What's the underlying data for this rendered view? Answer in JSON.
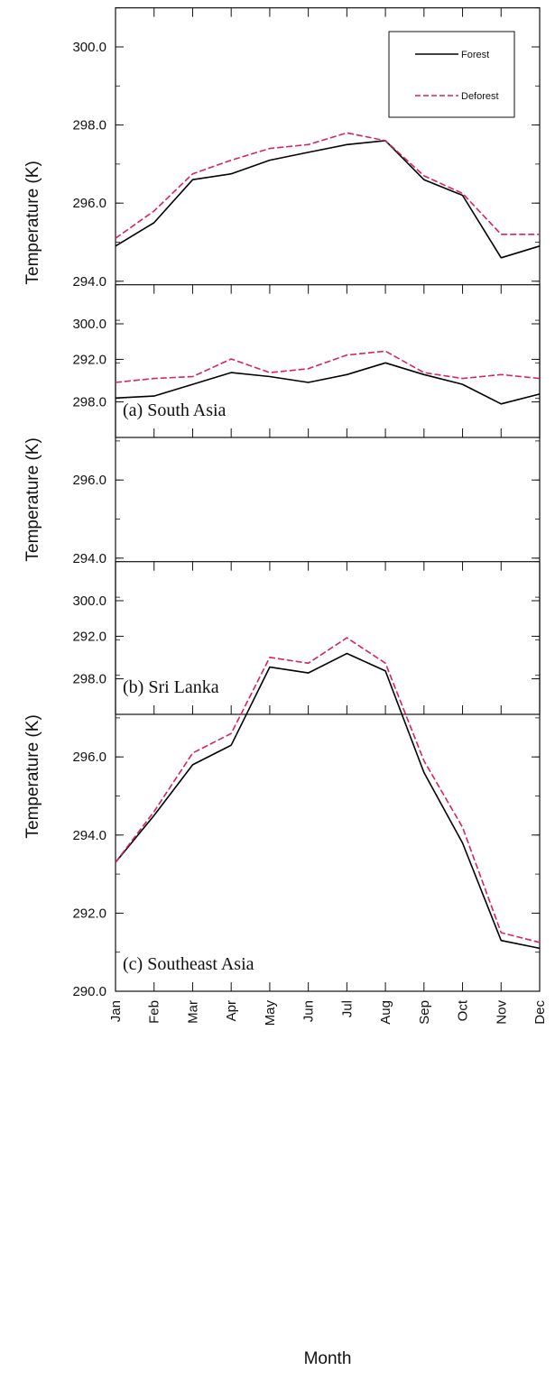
{
  "chart_data": {
    "type": "line",
    "x": [
      "Jan",
      "Feb",
      "Mar",
      "Apr",
      "May",
      "Jun",
      "Jul",
      "Aug",
      "Sep",
      "Oct",
      "Nov",
      "Dec"
    ],
    "xlabel": "Month",
    "ylabel": "Temperature (K)",
    "legend": {
      "entries": [
        "Forest",
        "Deforest"
      ],
      "placement": "top-right"
    },
    "colors": {
      "Forest": "#000000",
      "Deforest": "#d6245e"
    },
    "panels": [
      {
        "label": "(a) South Asia",
        "ylim": [
          290.0,
          301.0
        ],
        "yticks": [
          "292.0",
          "294.0",
          "296.0",
          "298.0",
          "300.0"
        ],
        "series": [
          {
            "name": "Forest",
            "values": [
              294.9,
              295.5,
              296.6,
              296.75,
              297.1,
              297.3,
              297.5,
              297.6,
              296.6,
              296.2,
              294.6,
              294.9
            ]
          },
          {
            "name": "Deforest",
            "values": [
              295.1,
              295.8,
              296.75,
              297.1,
              297.4,
              297.5,
              297.8,
              297.6,
              296.7,
              296.25,
              295.2,
              295.2
            ]
          }
        ]
      },
      {
        "label": "(b) Sri Lanka",
        "ylim": [
          290.0,
          301.0
        ],
        "yticks": [
          "292.0",
          "294.0",
          "296.0",
          "298.0",
          "300.0"
        ],
        "series": [
          {
            "name": "Forest",
            "values": [
              298.1,
              298.15,
              298.45,
              298.75,
              298.65,
              298.5,
              298.7,
              299.0,
              298.7,
              298.45,
              297.95,
              298.2
            ]
          },
          {
            "name": "Deforest",
            "values": [
              298.5,
              298.6,
              298.65,
              299.1,
              298.75,
              298.85,
              299.2,
              299.3,
              298.75,
              298.6,
              298.7,
              298.6
            ]
          }
        ]
      },
      {
        "label": "(c) Southeast Asia",
        "ylim": [
          290.0,
          301.0
        ],
        "yticks": [
          "290.0",
          "292.0",
          "294.0",
          "296.0",
          "298.0",
          "300.0"
        ],
        "series": [
          {
            "name": "Forest",
            "values": [
              293.3,
              294.5,
              295.8,
              296.3,
              298.3,
              298.15,
              298.65,
              298.2,
              295.6,
              293.8,
              291.3,
              291.1
            ]
          },
          {
            "name": "Deforest",
            "values": [
              293.3,
              294.6,
              296.1,
              296.6,
              298.55,
              298.4,
              299.05,
              298.4,
              295.9,
              294.2,
              291.5,
              291.25
            ]
          }
        ]
      }
    ]
  }
}
